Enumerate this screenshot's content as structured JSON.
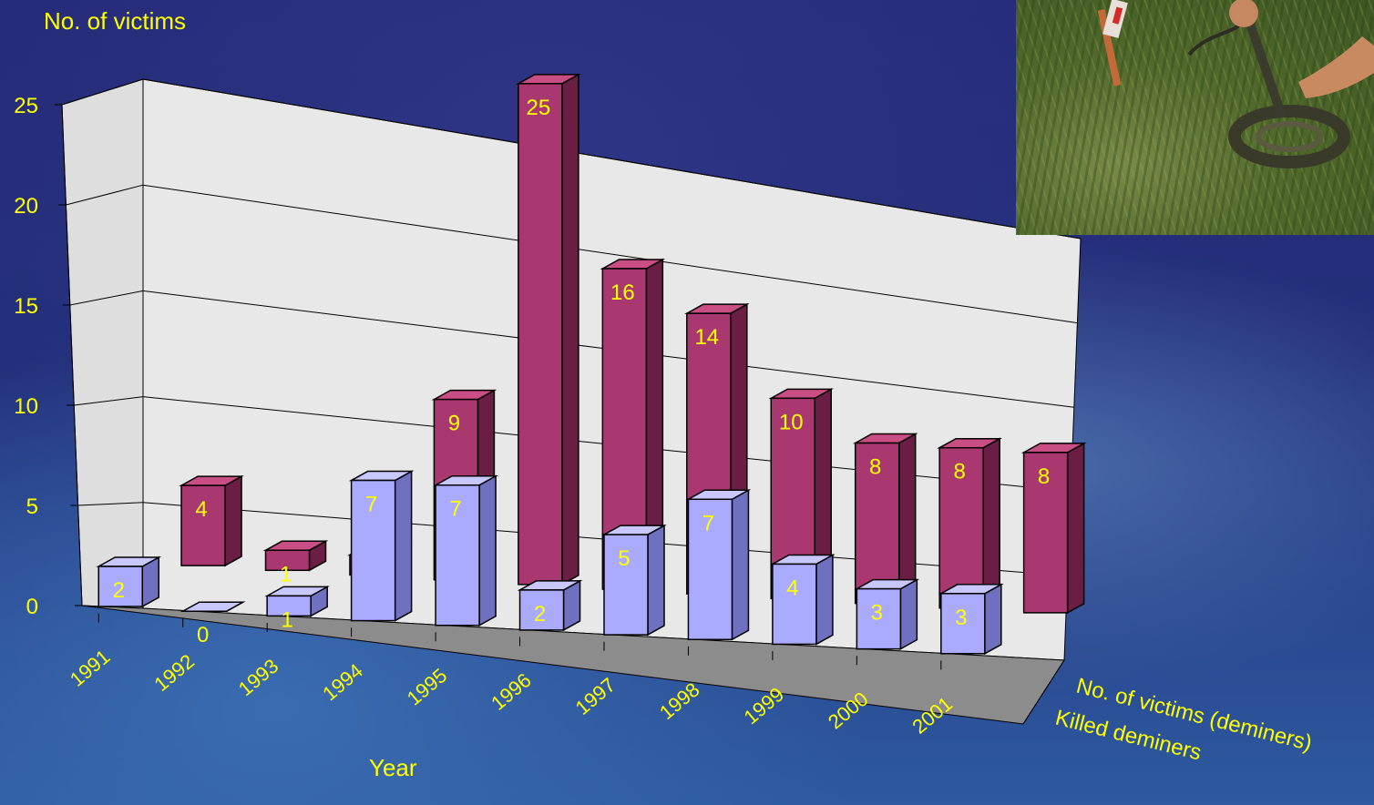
{
  "chart_data": {
    "type": "bar",
    "title": "",
    "ylabel": "No. of victims",
    "xlabel": "Year",
    "ylim": [
      0,
      25
    ],
    "yticks": [
      "0",
      "5",
      "10",
      "15",
      "20",
      "25"
    ],
    "categories": [
      "1991",
      "1992",
      "1993",
      "1994",
      "1995",
      "1996",
      "1997",
      "1998",
      "1999",
      "2000",
      "2001"
    ],
    "series": [
      {
        "name": "Killed deminers",
        "values": [
          2,
          0,
          1,
          7,
          7,
          2,
          5,
          7,
          4,
          3,
          3
        ],
        "color": "#aaaaff"
      },
      {
        "name": "No. of victims (deminers)",
        "values": [
          4,
          1,
          1,
          9,
          25,
          16,
          14,
          10,
          8,
          8,
          8
        ],
        "color": "#a8386f"
      }
    ],
    "grid": true,
    "label_color": "#ffff00"
  },
  "photo": {
    "alt": "Deminer using metal detector in grass"
  }
}
